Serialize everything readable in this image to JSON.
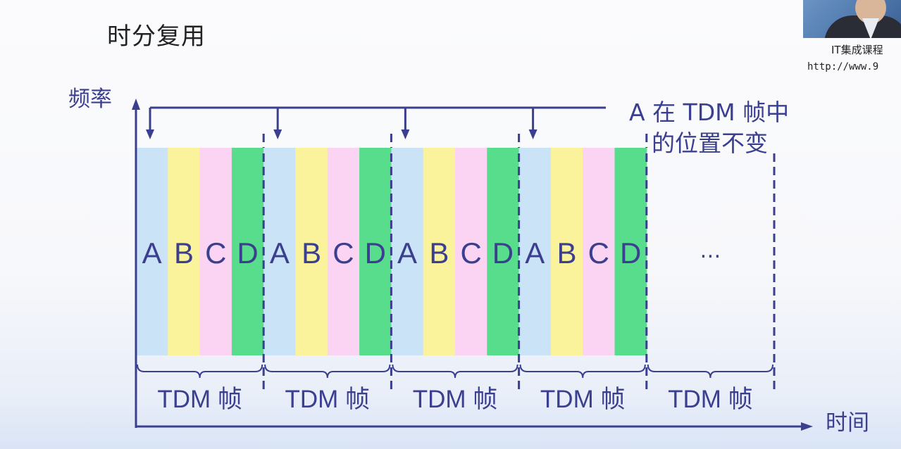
{
  "title": "时分复用",
  "watermark": {
    "name": "IT集成课程",
    "url": "http://www.9"
  },
  "diagram": {
    "y_axis_label": "频率",
    "x_axis_label": "时间",
    "annotation": [
      "A 在 TDM 帧中",
      "的位置不变"
    ],
    "slots": [
      "A",
      "B",
      "C",
      "D"
    ],
    "frames_shown": 4,
    "ellipsis": "…",
    "frame_label": "TDM 帧",
    "frame_count": 5,
    "colors": {
      "A": "#cbe3f7",
      "B": "#fbf39b",
      "C": "#fbd3f3",
      "D": "#57dd8b",
      "ink": "#3b3f8f"
    }
  }
}
